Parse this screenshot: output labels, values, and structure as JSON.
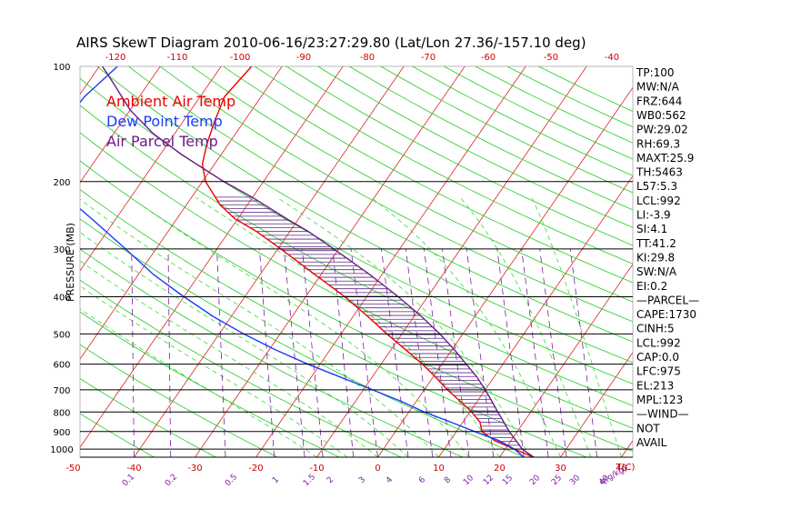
{
  "title": "AIRS SkewT Diagram 2010-06-16/23:27:29.80 (Lat/Lon 27.36/-157.10 deg)",
  "colors": {
    "temp": "#ee0000",
    "dewpoint": "#1a3cff",
    "parcel": "#6a1b8a",
    "isotherm": "#dd2222",
    "dry_adiabat": "#22cc22",
    "moist_adiabat": "#33dd33",
    "mixing_ratio": "#7a1fa0",
    "hatch": "#5a2a80",
    "grid": "#000000"
  },
  "legend": [
    {
      "label": "Ambient Air Temp",
      "color": "#ee0000"
    },
    {
      "label": "Dew Point Temp",
      "color": "#1a3cff"
    },
    {
      "label": "Air Parcel Temp",
      "color": "#6a1b8a"
    }
  ],
  "chart_data": {
    "type": "line",
    "title": "AIRS SkewT Diagram 2010-06-16/23:27:29.80 (Lat/Lon 27.36/-157.10 deg)",
    "ylabel": "PRESSURE (MB)",
    "xlabel": "T(C)",
    "mixing_ratio_unit": "q(g/kg)",
    "y_scale": "log",
    "ylim": [
      1050,
      100
    ],
    "pressure_ticks": [
      100,
      200,
      300,
      400,
      500,
      600,
      700,
      800,
      900,
      1000
    ],
    "isobar_lines": [
      200,
      300,
      400,
      500,
      600,
      700,
      800,
      900,
      1000,
      1050
    ],
    "bottom_temp_ticks": [
      -50,
      -40,
      -30,
      -20,
      -10,
      0,
      10,
      20,
      30,
      40
    ],
    "top_temp_ticks": [
      -120,
      -110,
      -100,
      -90,
      -80,
      -70,
      -60,
      -50,
      -40
    ],
    "mixing_ratio_ticks": [
      "0.1",
      "0.2",
      "0.5",
      "1",
      "1.5",
      "2",
      "3",
      "4",
      "6",
      "8",
      "10",
      "12",
      "15",
      "20",
      "25",
      "30",
      "40"
    ],
    "series": [
      {
        "name": "Ambient Air Temp",
        "pressure": [
          1050,
          1000,
          950,
          900,
          850,
          800,
          750,
          700,
          650,
          600,
          550,
          500,
          450,
          400,
          350,
          300,
          270,
          250,
          230,
          200,
          180,
          160,
          140,
          120,
          100
        ],
        "temp": [
          25.6,
          21.5,
          17.3,
          14.2,
          12.8,
          10.3,
          7.2,
          3.8,
          0.5,
          -3.2,
          -7.6,
          -12.5,
          -17.6,
          -23.6,
          -31.0,
          -39.5,
          -45.5,
          -50.5,
          -54.5,
          -59.5,
          -62.0,
          -63.5,
          -64.8,
          -66.0,
          -65.0
        ]
      },
      {
        "name": "Dew Point Temp",
        "pressure": [
          1050,
          1000,
          950,
          900,
          850,
          800,
          750,
          700,
          650,
          600,
          550,
          500,
          450,
          400,
          350,
          300,
          250,
          220,
          200,
          180,
          150,
          120,
          100
        ],
        "temp": [
          24.0,
          21.5,
          18.0,
          13.0,
          8.0,
          2.5,
          -2.5,
          -8.5,
          -15.0,
          -22.0,
          -29.0,
          -36.0,
          -43.0,
          -50.0,
          -57.5,
          -65.0,
          -74.0,
          -80.5,
          -85.0,
          -87.5,
          -89.5,
          -89.0,
          -87.0
        ]
      },
      {
        "name": "Air Parcel Temp",
        "pressure": [
          1050,
          1000,
          950,
          900,
          850,
          800,
          750,
          700,
          650,
          600,
          550,
          500,
          450,
          400,
          350,
          300,
          270,
          250,
          220,
          200,
          170,
          150,
          130,
          110,
          100
        ],
        "temp": [
          25.6,
          22.8,
          20.8,
          18.7,
          16.7,
          14.6,
          12.4,
          10.0,
          7.3,
          4.0,
          0.4,
          -3.8,
          -8.8,
          -14.8,
          -22.0,
          -30.8,
          -37.0,
          -42.0,
          -50.0,
          -56.5,
          -66.5,
          -73.5,
          -80.0,
          -86.0,
          -89.5
        ]
      }
    ]
  },
  "indices": [
    "TP:100",
    "MW:N/A",
    "FRZ:644",
    "WB0:562",
    "PW:29.02",
    "RH:69.3",
    "MAXT:25.9",
    "TH:5463",
    "L57:5.3",
    "LCL:992",
    "LI:-3.9",
    "SI:4.1",
    "TT:41.2",
    "KI:29.8",
    "SW:N/A",
    "EI:0.2",
    "—PARCEL—",
    "CAPE:1730",
    "CINH:5",
    "LCL:992",
    "CAP:0.0",
    "LFC:975",
    "EL:213",
    "MPL:123",
    "—WIND—",
    "NOT",
    "AVAIL"
  ]
}
